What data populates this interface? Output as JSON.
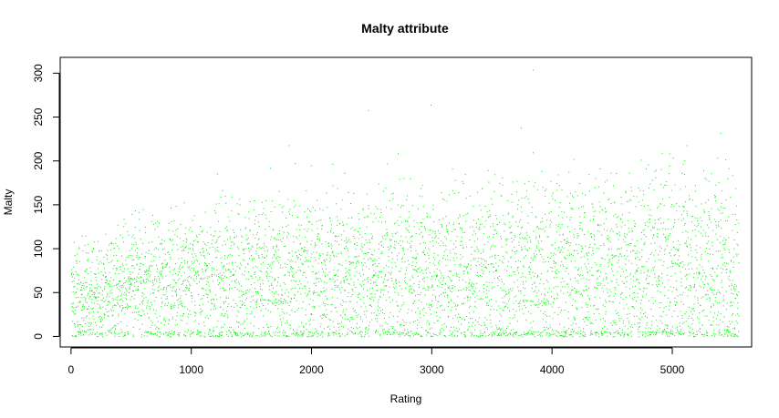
{
  "chart_data": {
    "type": "scatter",
    "title": "Malty attribute",
    "xlabel": "Rating",
    "ylabel": "Malty",
    "xlim": [
      -90,
      5660
    ],
    "ylim": [
      -12,
      318
    ],
    "x_ticks": [
      0,
      1000,
      2000,
      3000,
      4000,
      5000
    ],
    "y_ticks": [
      0,
      50,
      100,
      150,
      200,
      250,
      300
    ],
    "point_color": "#00ee00",
    "point_count_estimate": 5550,
    "x_range": [
      0,
      5550
    ],
    "grid": false,
    "legend": false,
    "notable_points": [
      {
        "x": 2470,
        "y": 258
      },
      {
        "x": 2990,
        "y": 264
      },
      {
        "x": 3840,
        "y": 304
      },
      {
        "x": 3740,
        "y": 238
      },
      {
        "x": 1810,
        "y": 218
      },
      {
        "x": 5120,
        "y": 218
      },
      {
        "x": 5400,
        "y": 232
      }
    ],
    "distribution_profile": [
      {
        "x": 0,
        "mean": 42,
        "spread": 28
      },
      {
        "x": 500,
        "mean": 60,
        "spread": 32
      },
      {
        "x": 1000,
        "mean": 68,
        "spread": 38
      },
      {
        "x": 1500,
        "mean": 70,
        "spread": 42
      },
      {
        "x": 2000,
        "mean": 72,
        "spread": 45
      },
      {
        "x": 2500,
        "mean": 73,
        "spread": 46
      },
      {
        "x": 3000,
        "mean": 74,
        "spread": 48
      },
      {
        "x": 3500,
        "mean": 74,
        "spread": 50
      },
      {
        "x": 4000,
        "mean": 76,
        "spread": 52
      },
      {
        "x": 4500,
        "mean": 78,
        "spread": 54
      },
      {
        "x": 5000,
        "mean": 80,
        "spread": 58
      },
      {
        "x": 5550,
        "mean": 75,
        "spread": 62
      }
    ]
  }
}
